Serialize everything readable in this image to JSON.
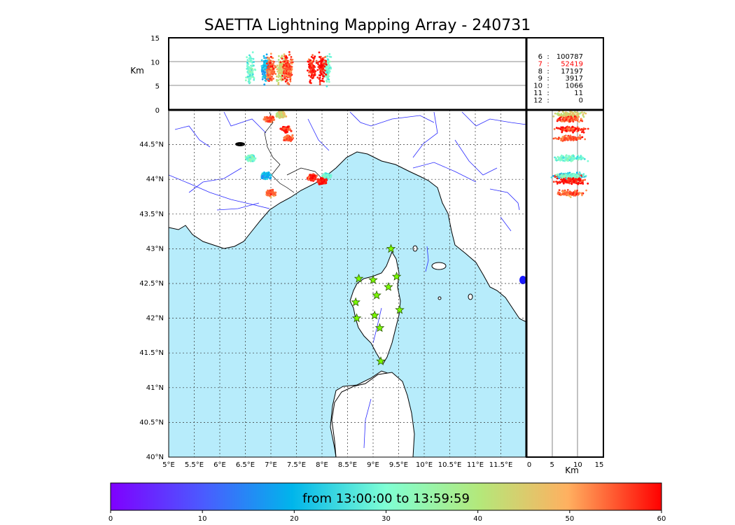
{
  "title": "SAETTA Lightning Mapping Array - 240731",
  "colorbar": {
    "label": "from 13:00:00 to 13:59:59",
    "ticks": [
      "0",
      "10",
      "20",
      "30",
      "40",
      "50",
      "60"
    ]
  },
  "altitude_panel": {
    "ylabel": "Km",
    "ticks": [
      "15",
      "10",
      "5",
      "0"
    ]
  },
  "side_panel": {
    "xlabel": "Km",
    "ticks": [
      "0",
      "5",
      "10",
      "15"
    ]
  },
  "station_counts": [
    {
      "stations": "6",
      "sep": ":",
      "count": "100787",
      "color": "#000000"
    },
    {
      "stations": "7",
      "sep": ":",
      "count": "52419",
      "color": "#ff0000"
    },
    {
      "stations": "8",
      "sep": ":",
      "count": "17197",
      "color": "#000000"
    },
    {
      "stations": "9",
      "sep": ":",
      "count": "3917",
      "color": "#000000"
    },
    {
      "stations": "10",
      "sep": ":",
      "count": "1066",
      "color": "#000000"
    },
    {
      "stations": "11",
      "sep": ":",
      "count": "11",
      "color": "#000000"
    },
    {
      "stations": "12",
      "sep": ":",
      "count": "0",
      "color": "#000000"
    }
  ],
  "map": {
    "lon_ticks": [
      "5°E",
      "5.5°E",
      "6°E",
      "6.5°E",
      "7°E",
      "7.5°E",
      "8°E",
      "8.5°E",
      "9°E",
      "9.5°E",
      "10°E",
      "10.5°E",
      "11°E",
      "11.5°E"
    ],
    "lat_ticks": [
      "44.5°N",
      "44°N",
      "43.5°N",
      "43°N",
      "42.5°N",
      "42°N",
      "41.5°N",
      "41°N",
      "40.5°N",
      "40°N"
    ],
    "sea_color": "#b7ecfb",
    "land_color": "#ffffff",
    "river_color": "#2a2aff",
    "station_color": "#7cfc00"
  },
  "chart_data": {
    "type": "scatter",
    "title": "SAETTA Lightning Mapping Array - 240731",
    "xlim": [
      5,
      12
    ],
    "ylim": [
      40,
      45
    ],
    "alt_ylim": [
      0,
      15
    ],
    "color_scale_minutes": [
      0,
      60
    ],
    "stations_lonlat": [
      [
        9.35,
        43.0
      ],
      [
        8.72,
        42.57
      ],
      [
        9.0,
        42.55
      ],
      [
        9.46,
        42.6
      ],
      [
        9.3,
        42.45
      ],
      [
        9.07,
        42.33
      ],
      [
        8.66,
        42.23
      ],
      [
        9.52,
        42.12
      ],
      [
        9.03,
        42.04
      ],
      [
        8.68,
        42.0
      ],
      [
        9.13,
        41.86
      ],
      [
        9.15,
        41.38
      ]
    ],
    "lightning_clusters": [
      {
        "lon": 7.2,
        "lat": 44.93,
        "minutes": 45
      },
      {
        "lon": 6.97,
        "lat": 44.87,
        "minutes": 55
      },
      {
        "lon": 7.3,
        "lat": 44.72,
        "minutes": 58
      },
      {
        "lon": 7.35,
        "lat": 44.59,
        "minutes": 55
      },
      {
        "lon": 6.6,
        "lat": 44.3,
        "minutes": 30
      },
      {
        "lon": 6.9,
        "lat": 44.05,
        "minutes": 20
      },
      {
        "lon": 7.8,
        "lat": 44.03,
        "minutes": 58
      },
      {
        "lon": 8.1,
        "lat": 44.05,
        "minutes": 30
      },
      {
        "lon": 7.0,
        "lat": 43.8,
        "minutes": 55
      },
      {
        "lon": 8.0,
        "lat": 43.97,
        "minutes": 59
      }
    ]
  }
}
